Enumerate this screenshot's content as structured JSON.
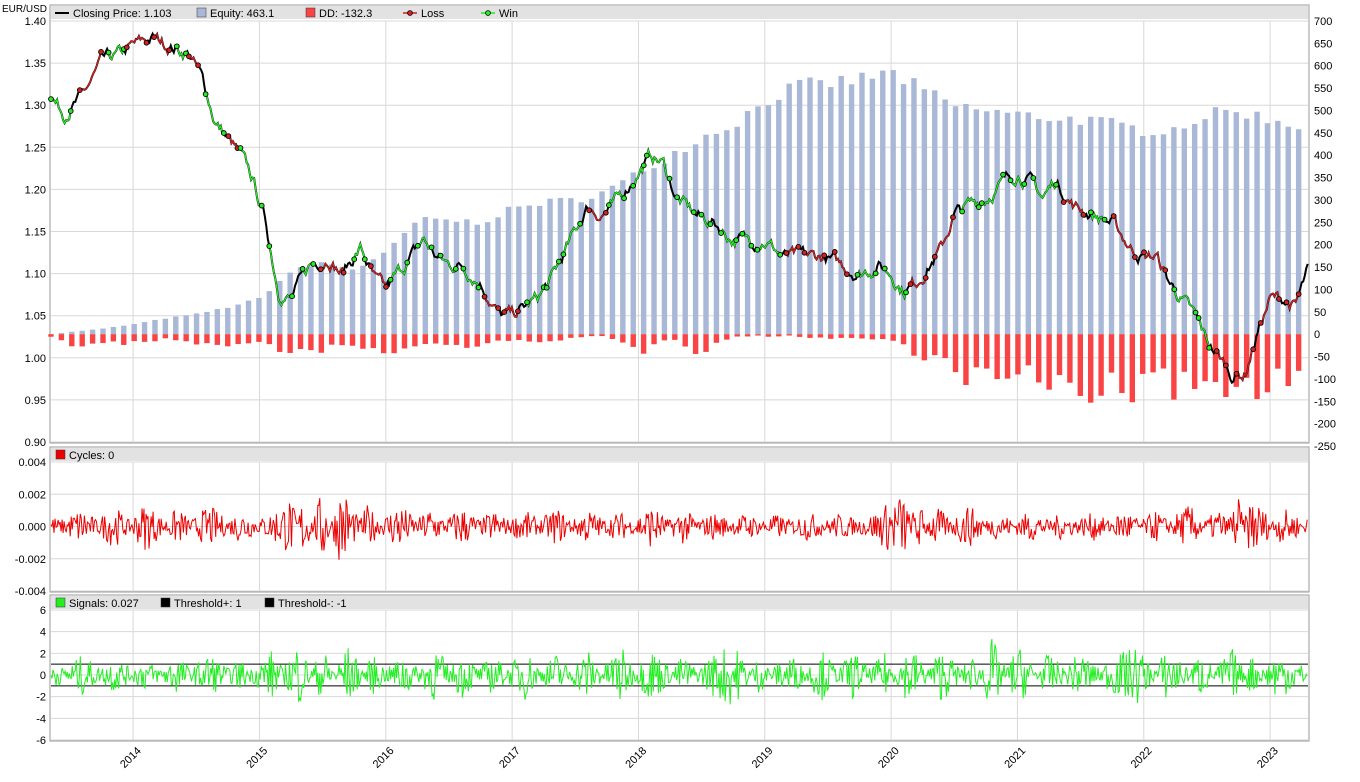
{
  "symbol": "EUR/USD",
  "colors": {
    "price": "#000000",
    "equity": "#a9b8d6",
    "dd": "#f84444",
    "loss": "#d42020",
    "win": "#22ee22",
    "cycles": "#ee0000",
    "signals": "#22ee22",
    "threshold": "#000000",
    "grid": "#d8d8d8",
    "header": "#e2e2e2",
    "frame": "#999999"
  },
  "legends": {
    "main": [
      {
        "label": "Closing Price: 1.103",
        "icon": "line-swatch",
        "color": "#000000"
      },
      {
        "label": "Equity: 463.1",
        "icon": "box-swatch",
        "color": "#a9b8d6"
      },
      {
        "label": "DD: -132.3",
        "icon": "box-swatch",
        "color": "#f84444"
      },
      {
        "label": "Loss",
        "icon": "dot-line-swatch",
        "color": "#d42020"
      },
      {
        "label": "Win",
        "icon": "dot-line-swatch",
        "color": "#22ee22"
      }
    ],
    "cycles": [
      {
        "label": "Cycles: 0",
        "icon": "box-swatch",
        "color": "#ee0000"
      }
    ],
    "signals": [
      {
        "label": "Signals: 0.027",
        "icon": "box-swatch",
        "color": "#22ee22"
      },
      {
        "label": "Threshold+: 1",
        "icon": "box-swatch",
        "color": "#000000"
      },
      {
        "label": "Threshold-: -1",
        "icon": "box-swatch",
        "color": "#000000"
      }
    ]
  },
  "chart_data": [
    {
      "type": "line",
      "panel": "price-equity",
      "x_start": "2013.35",
      "x_end": "2023.3",
      "x_tick_labels": [
        "2014",
        "2015",
        "2016",
        "2017",
        "2018",
        "2019",
        "2020",
        "2021",
        "2022",
        "2023"
      ],
      "left_axis": {
        "ylim": [
          0.9,
          1.4
        ],
        "ticks": [
          "0.90",
          "0.95",
          "1.00",
          "1.05",
          "1.10",
          "1.15",
          "1.20",
          "1.25",
          "1.30",
          "1.35",
          "1.40"
        ]
      },
      "right_axis": {
        "ylim": [
          -250,
          700
        ],
        "ticks": [
          "-250",
          "-200",
          "-150",
          "-100",
          "-50",
          "0",
          "50",
          "100",
          "150",
          "200",
          "250",
          "300",
          "350",
          "400",
          "450",
          "500",
          "550",
          "600",
          "650",
          "700"
        ]
      },
      "grid": true,
      "series": [
        {
          "name": "Closing Price",
          "type": "line",
          "axis": "left",
          "x": [
            2013.35,
            2013.45,
            2013.6,
            2013.75,
            2013.9,
            2014.0,
            2014.15,
            2014.3,
            2014.45,
            2014.55,
            2014.65,
            2014.75,
            2014.85,
            2014.95,
            2015.05,
            2015.15,
            2015.25,
            2015.4,
            2015.55,
            2015.65,
            2015.8,
            2015.92,
            2016.0,
            2016.15,
            2016.3,
            2016.4,
            2016.5,
            2016.6,
            2016.75,
            2016.9,
            2017.0,
            2017.1,
            2017.2,
            2017.3,
            2017.4,
            2017.5,
            2017.6,
            2017.7,
            2017.8,
            2017.9,
            2018.0,
            2018.1,
            2018.2,
            2018.3,
            2018.45,
            2018.6,
            2018.75,
            2018.9,
            2019.0,
            2019.15,
            2019.3,
            2019.45,
            2019.6,
            2019.75,
            2019.9,
            2020.0,
            2020.1,
            2020.2,
            2020.3,
            2020.4,
            2020.5,
            2020.6,
            2020.75,
            2020.9,
            2021.0,
            2021.1,
            2021.2,
            2021.3,
            2021.45,
            2021.6,
            2021.75,
            2021.9,
            2022.0,
            2022.1,
            2022.2,
            2022.3,
            2022.4,
            2022.5,
            2022.6,
            2022.7,
            2022.8,
            2022.9,
            2023.0,
            2023.1,
            2023.2,
            2023.3
          ],
          "y": [
            1.31,
            1.29,
            1.31,
            1.35,
            1.36,
            1.37,
            1.38,
            1.37,
            1.36,
            1.33,
            1.28,
            1.26,
            1.24,
            1.21,
            1.16,
            1.08,
            1.07,
            1.11,
            1.12,
            1.1,
            1.13,
            1.09,
            1.08,
            1.11,
            1.14,
            1.12,
            1.11,
            1.11,
            1.09,
            1.05,
            1.05,
            1.06,
            1.07,
            1.09,
            1.12,
            1.15,
            1.18,
            1.17,
            1.18,
            1.2,
            1.22,
            1.24,
            1.23,
            1.19,
            1.17,
            1.16,
            1.14,
            1.14,
            1.14,
            1.12,
            1.12,
            1.12,
            1.11,
            1.1,
            1.11,
            1.1,
            1.08,
            1.09,
            1.11,
            1.13,
            1.17,
            1.18,
            1.19,
            1.21,
            1.22,
            1.21,
            1.19,
            1.21,
            1.18,
            1.17,
            1.16,
            1.13,
            1.12,
            1.12,
            1.09,
            1.07,
            1.05,
            1.02,
            1.0,
            0.98,
            0.98,
            1.03,
            1.07,
            1.07,
            1.06,
            1.103
          ]
        },
        {
          "name": "Equity",
          "type": "bar",
          "axis": "right",
          "x": [
            2013.35,
            2013.5,
            2013.75,
            2014.0,
            2014.25,
            2014.5,
            2014.75,
            2015.0,
            2015.25,
            2015.5,
            2015.75,
            2016.0,
            2016.25,
            2016.5,
            2016.75,
            2017.0,
            2017.25,
            2017.5,
            2017.75,
            2018.0,
            2018.25,
            2018.5,
            2018.75,
            2019.0,
            2019.25,
            2019.5,
            2019.75,
            2020.0,
            2020.25,
            2020.5,
            2020.75,
            2021.0,
            2021.25,
            2021.5,
            2021.75,
            2022.0,
            2022.25,
            2022.5,
            2022.75,
            2023.0,
            2023.3
          ],
          "y": [
            0,
            5,
            12,
            22,
            35,
            45,
            60,
            80,
            140,
            160,
            145,
            180,
            255,
            255,
            250,
            280,
            295,
            300,
            320,
            360,
            400,
            440,
            470,
            520,
            555,
            560,
            570,
            585,
            545,
            510,
            500,
            490,
            485,
            480,
            470,
            455,
            460,
            490,
            500,
            480,
            463.1
          ]
        },
        {
          "name": "DD",
          "type": "bar",
          "axis": "right",
          "x": [
            2013.35,
            2013.5,
            2013.75,
            2014.0,
            2014.25,
            2014.5,
            2014.75,
            2015.0,
            2015.25,
            2015.5,
            2015.75,
            2016.0,
            2016.25,
            2016.5,
            2016.75,
            2017.0,
            2017.25,
            2017.5,
            2017.75,
            2018.0,
            2018.25,
            2018.5,
            2018.75,
            2019.0,
            2019.25,
            2019.5,
            2019.75,
            2020.0,
            2020.25,
            2020.5,
            2020.75,
            2021.0,
            2021.25,
            2021.5,
            2021.75,
            2022.0,
            2022.25,
            2022.5,
            2022.75,
            2023.0,
            2023.3
          ],
          "y": [
            -5,
            -30,
            -20,
            -25,
            -10,
            -20,
            -35,
            -15,
            -60,
            -35,
            -30,
            -50,
            -25,
            -30,
            -25,
            -20,
            -15,
            -10,
            -5,
            -45,
            -5,
            -45,
            -5,
            -5,
            -5,
            -10,
            -10,
            -15,
            -50,
            -90,
            -110,
            -110,
            -120,
            -130,
            -140,
            -130,
            -125,
            -120,
            -140,
            -110,
            -132.3
          ]
        }
      ]
    },
    {
      "type": "line",
      "panel": "cycles",
      "ylim": [
        -0.004,
        0.004
      ],
      "y_ticks": [
        "-0.004",
        "-0.002",
        "0.000",
        "0.002",
        "0.004"
      ],
      "grid": true,
      "series": [
        {
          "name": "Cycles",
          "x": [
            2013.35,
            2013.6,
            2013.85,
            2014.1,
            2014.35,
            2014.6,
            2014.85,
            2015.1,
            2015.25,
            2015.35,
            2015.5,
            2015.65,
            2015.85,
            2016.1,
            2016.35,
            2016.6,
            2016.85,
            2017.1,
            2017.35,
            2017.6,
            2017.85,
            2018.1,
            2018.35,
            2018.6,
            2018.85,
            2019.1,
            2019.35,
            2019.6,
            2019.85,
            2020.1,
            2020.2,
            2020.35,
            2020.6,
            2020.85,
            2021.1,
            2021.35,
            2021.6,
            2021.85,
            2022.1,
            2022.35,
            2022.6,
            2022.75,
            2022.85,
            2023.1,
            2023.3
          ],
          "y": [
            0.0005,
            -0.0012,
            0.0015,
            -0.0018,
            0.0012,
            -0.0015,
            0.001,
            -0.0008,
            -0.0022,
            0.0025,
            -0.003,
            0.0035,
            -0.0015,
            0.0018,
            -0.0013,
            0.0014,
            -0.001,
            0.001,
            -0.0012,
            0.0011,
            -0.0009,
            0.0015,
            -0.0011,
            0.0008,
            -0.0007,
            0.0006,
            -0.0008,
            0.0007,
            -0.0006,
            -0.0028,
            0.0022,
            -0.0015,
            0.0016,
            -0.0008,
            0.0009,
            -0.0007,
            0.0008,
            -0.001,
            0.0009,
            -0.0015,
            0.0012,
            -0.0022,
            0.0025,
            -0.0012,
            0.0002
          ]
        }
      ]
    },
    {
      "type": "line",
      "panel": "signals",
      "ylim": [
        -6,
        6
      ],
      "y_ticks": [
        "-6",
        "-4",
        "-2",
        "0",
        "2",
        "4",
        "6"
      ],
      "grid": true,
      "thresholds": [
        1,
        -1
      ],
      "series": [
        {
          "name": "Signals",
          "x": [
            2013.35,
            2013.6,
            2013.85,
            2014.1,
            2014.35,
            2014.6,
            2014.85,
            2015.1,
            2015.3,
            2015.5,
            2015.7,
            2015.9,
            2016.15,
            2016.4,
            2016.6,
            2016.85,
            2017.1,
            2017.35,
            2017.6,
            2017.85,
            2018.1,
            2018.35,
            2018.6,
            2018.75,
            2018.95,
            2019.2,
            2019.45,
            2019.7,
            2019.95,
            2020.15,
            2020.4,
            2020.65,
            2020.8,
            2021.0,
            2021.25,
            2021.5,
            2021.75,
            2021.95,
            2022.2,
            2022.45,
            2022.7,
            2022.85,
            2023.05,
            2023.3
          ],
          "y": [
            1.5,
            -2.2,
            1.8,
            -1.5,
            2.0,
            -2.5,
            1.5,
            -3.0,
            4.2,
            -3.2,
            3.5,
            -2.0,
            2.5,
            -3.5,
            2.8,
            -2.2,
            3.0,
            -2.5,
            3.2,
            -3.8,
            3.5,
            -2.0,
            2.5,
            4.0,
            -1.8,
            2.5,
            -3.0,
            2.8,
            -2.5,
            3.8,
            -3.2,
            2.0,
            -4.8,
            3.8,
            -2.5,
            2.8,
            -2.0,
            -3.5,
            3.5,
            -2.5,
            3.2,
            -2.2,
            2.8,
            0.027
          ]
        }
      ]
    }
  ]
}
